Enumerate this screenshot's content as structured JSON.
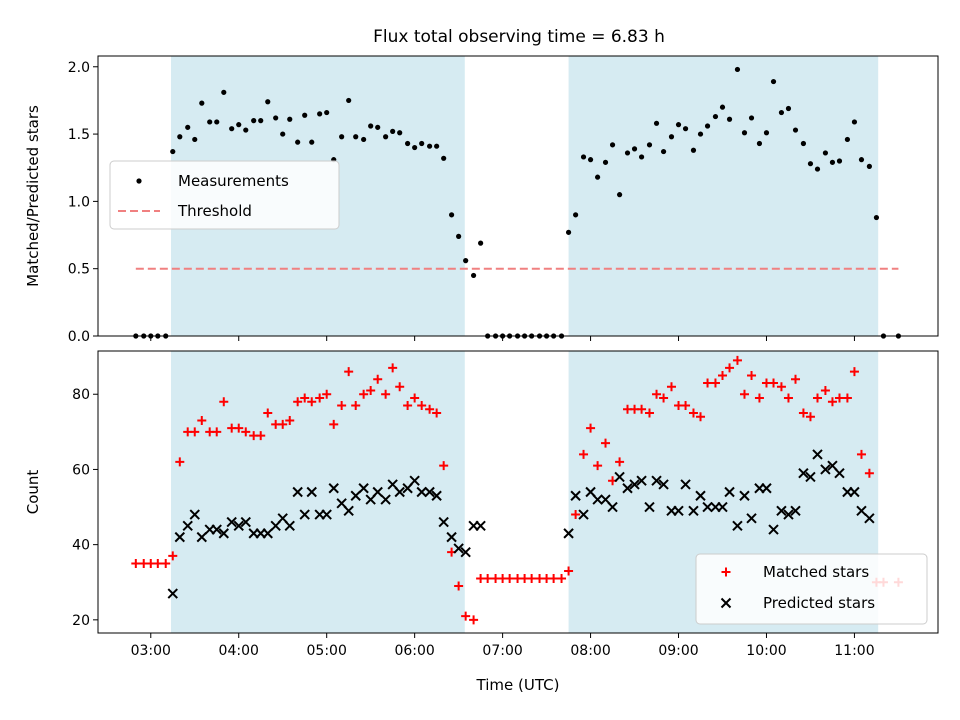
{
  "title": "Flux total observing time = 6.83 h",
  "colors": {
    "shade": "#add8e6",
    "matched": "#ff0000",
    "predicted": "#000000",
    "threshold": "#f08080",
    "ratio": "#000000"
  },
  "chart_data": [
    {
      "type": "scatter",
      "ylabel": "Matched/Predicted stars",
      "xlabel": "",
      "xlim": [
        2.4,
        11.95
      ],
      "ylim": [
        0.0,
        2.08
      ],
      "yticks": [
        0.0,
        0.5,
        1.0,
        1.5,
        2.0
      ],
      "ytick_labels": [
        "0.0",
        "0.5",
        "1.0",
        "1.5",
        "2.0"
      ],
      "shaded_intervals": [
        [
          3.23,
          6.57
        ],
        [
          7.75,
          11.27
        ]
      ],
      "legend": {
        "placement": "center-left",
        "entries": [
          "Measurements",
          "Threshold"
        ]
      },
      "threshold": {
        "name": "Threshold",
        "y": 0.5,
        "x": [
          2.83,
          11.5
        ]
      },
      "series": [
        {
          "name": "Measurements",
          "x": [
            2.83,
            2.92,
            3.0,
            3.08,
            3.17,
            3.25,
            3.33,
            3.42,
            3.5,
            3.58,
            3.67,
            3.75,
            3.83,
            3.92,
            4.0,
            4.08,
            4.17,
            4.25,
            4.33,
            4.42,
            4.5,
            4.58,
            4.67,
            4.75,
            4.83,
            4.92,
            5.0,
            5.08,
            5.17,
            5.25,
            5.33,
            5.42,
            5.5,
            5.58,
            5.67,
            5.75,
            5.83,
            5.92,
            6.0,
            6.08,
            6.17,
            6.25,
            6.33,
            6.42,
            6.5,
            6.58,
            6.67,
            6.75,
            6.83,
            6.92,
            7.0,
            7.08,
            7.17,
            7.25,
            7.33,
            7.42,
            7.5,
            7.58,
            7.67,
            7.75,
            7.83,
            7.92,
            8.0,
            8.08,
            8.17,
            8.25,
            8.33,
            8.42,
            8.5,
            8.58,
            8.67,
            8.75,
            8.83,
            8.92,
            9.0,
            9.08,
            9.17,
            9.25,
            9.33,
            9.42,
            9.5,
            9.58,
            9.67,
            9.75,
            9.83,
            9.92,
            10.0,
            10.08,
            10.17,
            10.25,
            10.33,
            10.42,
            10.5,
            10.58,
            10.67,
            10.75,
            10.83,
            10.92,
            11.0,
            11.08,
            11.17,
            11.25,
            11.33,
            11.5
          ],
          "y": [
            0.0,
            0.0,
            0.0,
            0.0,
            0.0,
            1.37,
            1.48,
            1.55,
            1.46,
            1.73,
            1.59,
            1.59,
            1.81,
            1.54,
            1.57,
            1.53,
            1.6,
            1.6,
            1.74,
            1.62,
            1.5,
            1.61,
            1.44,
            1.64,
            1.44,
            1.65,
            1.66,
            1.31,
            1.48,
            1.75,
            1.48,
            1.46,
            1.56,
            1.55,
            1.48,
            1.52,
            1.51,
            1.43,
            1.4,
            1.43,
            1.41,
            1.41,
            1.32,
            0.9,
            0.74,
            0.56,
            0.45,
            0.69,
            0.0,
            0.0,
            0.0,
            0.0,
            0.0,
            0.0,
            0.0,
            0.0,
            0.0,
            0.0,
            0.0,
            0.77,
            0.9,
            1.33,
            1.31,
            1.18,
            1.29,
            1.42,
            1.05,
            1.36,
            1.39,
            1.33,
            1.42,
            1.58,
            1.37,
            1.48,
            1.57,
            1.54,
            1.38,
            1.5,
            1.56,
            1.63,
            1.7,
            1.61,
            1.98,
            1.51,
            1.62,
            1.43,
            1.51,
            1.89,
            1.66,
            1.69,
            1.53,
            1.43,
            1.28,
            1.24,
            1.36,
            1.29,
            1.3,
            1.46,
            1.59,
            1.31,
            1.26,
            0.88,
            0.0,
            0.0
          ]
        }
      ]
    },
    {
      "type": "scatter",
      "ylabel": "Count",
      "xlabel": "Time (UTC)",
      "xlim": [
        2.4,
        11.95
      ],
      "ylim": [
        16.5,
        91.5
      ],
      "yticks": [
        20,
        40,
        60,
        80
      ],
      "ytick_labels": [
        "20",
        "40",
        "60",
        "80"
      ],
      "xticks": [
        3,
        4,
        5,
        6,
        7,
        8,
        9,
        10,
        11
      ],
      "xtick_labels": [
        "03:00",
        "04:00",
        "05:00",
        "06:00",
        "07:00",
        "08:00",
        "09:00",
        "10:00",
        "11:00"
      ],
      "shaded_intervals": [
        [
          3.23,
          6.57
        ],
        [
          7.75,
          11.27
        ]
      ],
      "legend": {
        "placement": "bottom-right",
        "entries": [
          "Matched stars",
          "Predicted stars"
        ]
      },
      "series": [
        {
          "name": "Matched stars",
          "marker": "plus",
          "x": [
            2.83,
            2.92,
            3.0,
            3.08,
            3.17,
            3.25,
            3.33,
            3.42,
            3.5,
            3.58,
            3.67,
            3.75,
            3.83,
            3.92,
            4.0,
            4.08,
            4.17,
            4.25,
            4.33,
            4.42,
            4.5,
            4.58,
            4.67,
            4.75,
            4.83,
            4.92,
            5.0,
            5.08,
            5.17,
            5.25,
            5.33,
            5.42,
            5.5,
            5.58,
            5.67,
            5.75,
            5.83,
            5.92,
            6.0,
            6.08,
            6.17,
            6.25,
            6.33,
            6.42,
            6.5,
            6.58,
            6.67,
            6.75,
            6.83,
            6.92,
            7.0,
            7.08,
            7.17,
            7.25,
            7.33,
            7.42,
            7.5,
            7.58,
            7.67,
            7.75,
            7.83,
            7.92,
            8.0,
            8.08,
            8.17,
            8.25,
            8.33,
            8.42,
            8.5,
            8.58,
            8.67,
            8.75,
            8.83,
            8.92,
            9.0,
            9.08,
            9.17,
            9.25,
            9.33,
            9.42,
            9.5,
            9.58,
            9.67,
            9.75,
            9.83,
            9.92,
            10.0,
            10.08,
            10.17,
            10.25,
            10.33,
            10.42,
            10.5,
            10.58,
            10.67,
            10.75,
            10.83,
            10.92,
            11.0,
            11.08,
            11.17,
            11.25,
            11.33,
            11.5
          ],
          "y": [
            35,
            35,
            35,
            35,
            35,
            37,
            62,
            70,
            70,
            73,
            70,
            70,
            78,
            71,
            71,
            70,
            69,
            69,
            75,
            72,
            72,
            73,
            78,
            79,
            78,
            79,
            80,
            72,
            77,
            86,
            77,
            80,
            81,
            84,
            80,
            87,
            82,
            77,
            79,
            77,
            76,
            75,
            61,
            38,
            29,
            21,
            20,
            31,
            31,
            31,
            31,
            31,
            31,
            31,
            31,
            31,
            31,
            31,
            31,
            33,
            48,
            64,
            71,
            61,
            67,
            57,
            62,
            76,
            76,
            76,
            75,
            80,
            79,
            82,
            77,
            77,
            75,
            74,
            83,
            83,
            85,
            87,
            89,
            80,
            85,
            79,
            83,
            83,
            82,
            79,
            84,
            75,
            74,
            79,
            81,
            78,
            79,
            79,
            86,
            64,
            59,
            30,
            30,
            30
          ]
        },
        {
          "name": "Predicted stars",
          "marker": "cross",
          "x": [
            3.25,
            3.33,
            3.42,
            3.5,
            3.58,
            3.67,
            3.75,
            3.83,
            3.92,
            4.0,
            4.08,
            4.17,
            4.25,
            4.33,
            4.42,
            4.5,
            4.58,
            4.67,
            4.75,
            4.83,
            4.92,
            5.0,
            5.08,
            5.17,
            5.25,
            5.33,
            5.42,
            5.5,
            5.58,
            5.67,
            5.75,
            5.83,
            5.92,
            6.0,
            6.08,
            6.17,
            6.25,
            6.33,
            6.42,
            6.5,
            6.58,
            6.67,
            6.75,
            7.75,
            7.83,
            7.92,
            8.0,
            8.08,
            8.17,
            8.25,
            8.33,
            8.42,
            8.5,
            8.58,
            8.67,
            8.75,
            8.83,
            8.92,
            9.0,
            9.08,
            9.17,
            9.25,
            9.33,
            9.42,
            9.5,
            9.58,
            9.67,
            9.75,
            9.83,
            9.92,
            10.0,
            10.08,
            10.17,
            10.25,
            10.33,
            10.42,
            10.5,
            10.58,
            10.67,
            10.75,
            10.83,
            10.92,
            11.0,
            11.08,
            11.17
          ],
          "y": [
            27,
            42,
            45,
            48,
            42,
            44,
            44,
            43,
            46,
            45,
            46,
            43,
            43,
            43,
            45,
            47,
            45,
            54,
            48,
            54,
            48,
            48,
            55,
            51,
            49,
            53,
            55,
            52,
            54,
            52,
            56,
            54,
            55,
            57,
            54,
            54,
            53,
            46,
            42,
            39,
            38,
            45,
            45,
            43,
            53,
            48,
            54,
            52,
            52,
            50,
            58,
            55,
            56,
            57,
            50,
            57,
            56,
            49,
            49,
            56,
            49,
            53,
            50,
            50,
            50,
            54,
            45,
            53,
            47,
            55,
            55,
            44,
            49,
            48,
            49,
            59,
            58,
            64,
            60,
            61,
            59,
            54,
            54,
            49,
            47
          ]
        }
      ]
    }
  ]
}
